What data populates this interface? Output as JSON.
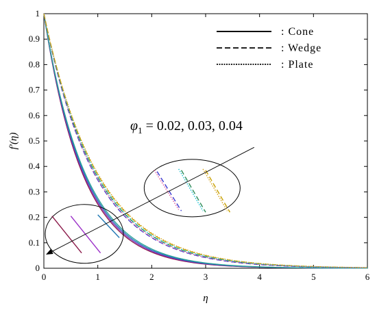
{
  "chart_data": {
    "type": "line",
    "xlabel": "η",
    "ylabel": "f′(η)",
    "xlim": [
      0,
      6
    ],
    "ylim": [
      0,
      1
    ],
    "x_ticks": [
      "0",
      "1",
      "2",
      "3",
      "4",
      "5",
      "6"
    ],
    "y_ticks": [
      "0",
      "0.1",
      "0.2",
      "0.3",
      "0.4",
      "0.5",
      "0.6",
      "0.7",
      "0.8",
      "0.9",
      "1"
    ],
    "grid": false,
    "legend_position": "top-right",
    "legend": [
      {
        "label": ": Cone",
        "style": "solid"
      },
      {
        "label": ": Wedge",
        "style": "dashed"
      },
      {
        "label": ": Plate",
        "style": "dotted"
      }
    ],
    "annotation": {
      "symbol": "φ",
      "subscript": "1",
      "text": " =  0.02, 0.03, 0.04"
    },
    "series": [
      {
        "geometry": "Cone",
        "phi1": 0.02,
        "decay": 1.38,
        "color": "#8b1a4a",
        "style": "solid"
      },
      {
        "geometry": "Cone",
        "phi1": 0.03,
        "decay": 1.35,
        "color": "#7b2fbe",
        "style": "solid"
      },
      {
        "geometry": "Cone",
        "phi1": 0.04,
        "decay": 1.32,
        "color": "#1f78b4",
        "style": "solid"
      },
      {
        "geometry": "Cone",
        "phi1": 0.02,
        "decay": 1.29,
        "color": "#2aa198",
        "style": "solid"
      },
      {
        "geometry": "Wedge",
        "phi1": 0.02,
        "decay": 1.06,
        "color": "#3a3ad0",
        "style": "dashed"
      },
      {
        "geometry": "Wedge",
        "phi1": 0.03,
        "decay": 1.03,
        "color": "#2e8b57",
        "style": "dashed"
      },
      {
        "geometry": "Wedge",
        "phi1": 0.04,
        "decay": 1.0,
        "color": "#c8a000",
        "style": "dashed"
      },
      {
        "geometry": "Plate",
        "phi1": 0.02,
        "decay": 1.05,
        "color": "#e0559a",
        "style": "dotted"
      },
      {
        "geometry": "Plate",
        "phi1": 0.03,
        "decay": 1.02,
        "color": "#17c0d0",
        "style": "dotted"
      },
      {
        "geometry": "Plate",
        "phi1": 0.04,
        "decay": 0.99,
        "color": "#d4a017",
        "style": "dotted"
      }
    ],
    "zoom_marks": {
      "left_group": [
        {
          "x": [
            0.15,
            0.7
          ],
          "y": [
            0.205,
            0.06
          ],
          "color": "#8b1a4a"
        },
        {
          "x": [
            0.5,
            1.05
          ],
          "y": [
            0.205,
            0.06
          ],
          "color": "#9b30c8"
        },
        {
          "x": [
            1.0,
            1.4
          ],
          "y": [
            0.21,
            0.12
          ],
          "color": "#1f78b4"
        }
      ],
      "right_group": [
        {
          "x": [
            2.05,
            2.5
          ],
          "y": [
            0.385,
            0.23
          ],
          "color": "#e0559a",
          "style": "dotted"
        },
        {
          "x": [
            2.1,
            2.55
          ],
          "y": [
            0.38,
            0.225
          ],
          "color": "#3a3ad0",
          "style": "dashed"
        },
        {
          "x": [
            2.5,
            2.95
          ],
          "y": [
            0.39,
            0.225
          ],
          "color": "#17c0d0",
          "style": "dotted"
        },
        {
          "x": [
            2.55,
            3.0
          ],
          "y": [
            0.385,
            0.22
          ],
          "color": "#2e8b57",
          "style": "dashed"
        },
        {
          "x": [
            2.95,
            3.4
          ],
          "y": [
            0.39,
            0.225
          ],
          "color": "#d4a017",
          "style": "dotted"
        },
        {
          "x": [
            3.0,
            3.45
          ],
          "y": [
            0.385,
            0.22
          ],
          "color": "#c8a000",
          "style": "dashed"
        }
      ],
      "arrow": {
        "from": [
          3.9,
          0.475
        ],
        "to": [
          0.05,
          0.055
        ]
      }
    }
  }
}
